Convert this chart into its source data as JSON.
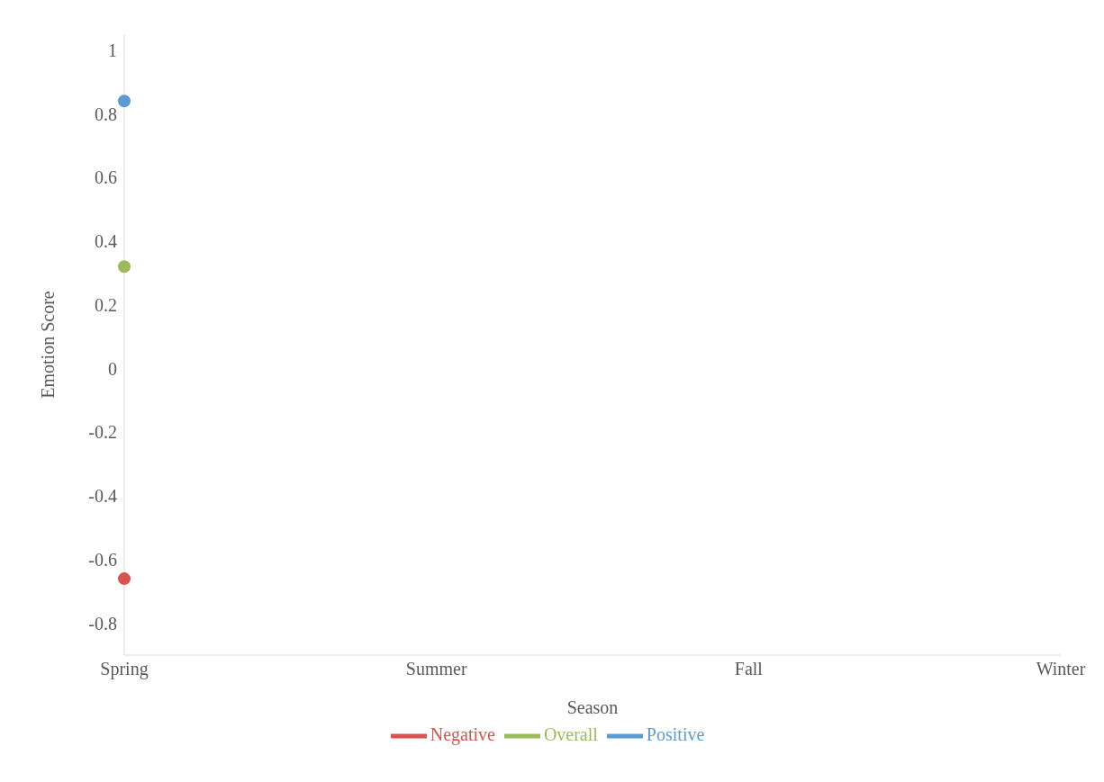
{
  "chart_data": {
    "type": "line",
    "xlabel": "Season",
    "ylabel": "Emotion Score",
    "categories": [
      "Spring",
      "Summer",
      "Fall",
      "Winter"
    ],
    "series": [
      {
        "name": "Positive",
        "color": "#5b9bd5",
        "values": [
          0.84,
          null,
          null,
          null
        ]
      },
      {
        "name": "Negative",
        "color": "#d9534f",
        "values": [
          -0.66,
          null,
          null,
          null
        ]
      },
      {
        "name": "Overall",
        "color": "#9bbb59",
        "values": [
          0.32,
          null,
          null,
          null
        ]
      }
    ],
    "ylim": [
      -0.9,
      1.05
    ],
    "yticks": [
      -0.8,
      -0.6,
      -0.4,
      -0.2,
      0,
      0.2,
      0.4,
      0.6,
      0.8,
      1
    ],
    "grid": false,
    "legend": "bottom",
    "marker": "circle"
  }
}
